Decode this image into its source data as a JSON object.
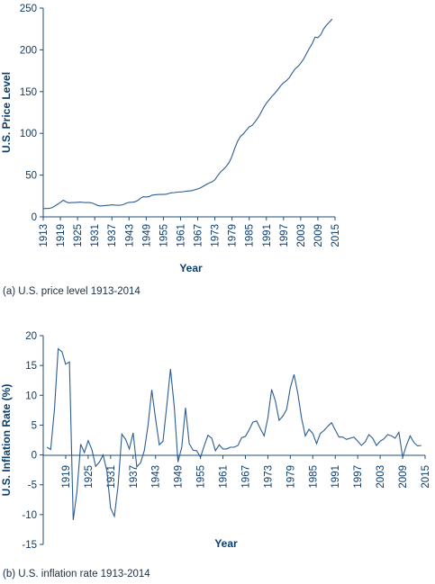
{
  "chart_data": [
    {
      "type": "line",
      "caption": "(a) U.S. price level 1913-2014",
      "xlabel": "Year",
      "ylabel": "U.S. Price Level",
      "xlim": [
        1913,
        2015
      ],
      "ylim": [
        0,
        250
      ],
      "xticks": [
        1913,
        1919,
        1925,
        1931,
        1937,
        1943,
        1949,
        1955,
        1961,
        1967,
        1973,
        1979,
        1985,
        1991,
        1997,
        2003,
        2009,
        2015
      ],
      "yticks": [
        0,
        50,
        100,
        150,
        200,
        250
      ],
      "grid": false,
      "line_color": "#2b5d95",
      "series": [
        {
          "x": [
            1913,
            1914,
            1915,
            1916,
            1917,
            1918,
            1919,
            1920,
            1921,
            1922,
            1923,
            1924,
            1925,
            1926,
            1927,
            1928,
            1929,
            1930,
            1931,
            1932,
            1933,
            1934,
            1935,
            1936,
            1937,
            1938,
            1939,
            1940,
            1941,
            1942,
            1943,
            1944,
            1945,
            1946,
            1947,
            1948,
            1949,
            1950,
            1951,
            1952,
            1953,
            1954,
            1955,
            1956,
            1957,
            1958,
            1959,
            1960,
            1961,
            1962,
            1963,
            1964,
            1965,
            1966,
            1967,
            1968,
            1969,
            1970,
            1971,
            1972,
            1973,
            1974,
            1975,
            1976,
            1977,
            1978,
            1979,
            1980,
            1981,
            1982,
            1983,
            1984,
            1985,
            1986,
            1987,
            1988,
            1989,
            1990,
            1991,
            1992,
            1993,
            1994,
            1995,
            1996,
            1997,
            1998,
            1999,
            2000,
            2001,
            2002,
            2003,
            2004,
            2005,
            2006,
            2007,
            2008,
            2009,
            2010,
            2011,
            2012,
            2013,
            2014
          ],
          "y": [
            9.9,
            10.0,
            10.1,
            10.9,
            12.8,
            15.1,
            17.3,
            20.0,
            17.9,
            16.8,
            17.1,
            17.1,
            17.5,
            17.7,
            17.4,
            17.1,
            17.1,
            16.7,
            15.2,
            13.7,
            13.0,
            13.4,
            13.7,
            13.9,
            14.4,
            14.1,
            13.9,
            14.0,
            14.7,
            16.3,
            17.3,
            17.6,
            18.0,
            19.5,
            22.3,
            24.1,
            23.8,
            24.1,
            26.0,
            26.5,
            26.7,
            26.9,
            26.8,
            27.2,
            28.1,
            28.9,
            29.1,
            29.6,
            29.9,
            30.2,
            30.6,
            31.0,
            31.5,
            32.4,
            33.4,
            34.8,
            36.7,
            38.8,
            40.5,
            41.8,
            44.4,
            49.3,
            53.8,
            56.9,
            60.6,
            65.2,
            72.6,
            82.4,
            90.9,
            96.5,
            99.6,
            103.9,
            107.6,
            109.6,
            113.6,
            118.3,
            124.0,
            130.7,
            136.2,
            140.3,
            144.5,
            148.2,
            152.4,
            156.9,
            160.5,
            163.0,
            166.6,
            172.2,
            177.1,
            179.9,
            184.0,
            188.9,
            195.3,
            201.6,
            207.3,
            215.3,
            214.5,
            218.1,
            224.9,
            229.6,
            233.0,
            236.7
          ]
        }
      ]
    },
    {
      "type": "line",
      "caption": "(b) U.S. inflation rate 1913-2014",
      "xlabel": "Year",
      "ylabel": "U.S. Inflation Rate (%)",
      "xlim": [
        1913,
        2015
      ],
      "ylim": [
        -15,
        20
      ],
      "xticks": [
        1919,
        1925,
        1931,
        1937,
        1943,
        1949,
        1955,
        1961,
        1967,
        1973,
        1979,
        1985,
        1991,
        1997,
        2003,
        2009,
        2015
      ],
      "yticks": [
        -15,
        -10,
        -5,
        0,
        5,
        10,
        15,
        20
      ],
      "grid": false,
      "line_color": "#2b5d95",
      "series": [
        {
          "x": [
            1914,
            1915,
            1916,
            1917,
            1918,
            1919,
            1920,
            1921,
            1922,
            1923,
            1924,
            1925,
            1926,
            1927,
            1928,
            1929,
            1930,
            1931,
            1932,
            1933,
            1934,
            1935,
            1936,
            1937,
            1938,
            1939,
            1940,
            1941,
            1942,
            1943,
            1944,
            1945,
            1946,
            1947,
            1948,
            1949,
            1950,
            1951,
            1952,
            1953,
            1954,
            1955,
            1956,
            1957,
            1958,
            1959,
            1960,
            1961,
            1962,
            1963,
            1964,
            1965,
            1966,
            1967,
            1968,
            1969,
            1970,
            1971,
            1972,
            1973,
            1974,
            1975,
            1976,
            1977,
            1978,
            1979,
            1980,
            1981,
            1982,
            1983,
            1984,
            1985,
            1986,
            1987,
            1988,
            1989,
            1990,
            1991,
            1992,
            1993,
            1994,
            1995,
            1996,
            1997,
            1998,
            1999,
            2000,
            2001,
            2002,
            2003,
            2004,
            2005,
            2006,
            2007,
            2008,
            2009,
            2010,
            2011,
            2012,
            2013,
            2014
          ],
          "y": [
            1.3,
            0.9,
            7.7,
            17.8,
            17.3,
            15.2,
            15.6,
            -10.9,
            -6.2,
            1.8,
            0.4,
            2.4,
            0.9,
            -1.9,
            -1.2,
            0.0,
            -2.7,
            -8.9,
            -10.3,
            -5.2,
            3.5,
            2.6,
            1.0,
            3.7,
            -2.0,
            -1.3,
            0.7,
            5.0,
            10.9,
            6.1,
            1.7,
            2.3,
            8.3,
            14.4,
            8.1,
            -1.2,
            1.3,
            7.9,
            1.9,
            0.8,
            0.7,
            -0.4,
            1.5,
            3.3,
            2.8,
            0.7,
            1.7,
            1.0,
            1.0,
            1.3,
            1.3,
            1.6,
            2.9,
            3.1,
            4.2,
            5.5,
            5.7,
            4.4,
            3.2,
            6.2,
            11.0,
            9.1,
            5.8,
            6.5,
            7.6,
            11.3,
            13.5,
            10.3,
            6.2,
            3.2,
            4.3,
            3.6,
            1.9,
            3.6,
            4.1,
            4.8,
            5.4,
            4.2,
            3.0,
            3.0,
            2.6,
            2.8,
            3.0,
            2.3,
            1.6,
            2.2,
            3.4,
            2.8,
            1.6,
            2.3,
            2.7,
            3.4,
            3.2,
            2.8,
            3.8,
            -0.4,
            1.6,
            3.2,
            2.1,
            1.5,
            1.6
          ]
        }
      ]
    }
  ]
}
